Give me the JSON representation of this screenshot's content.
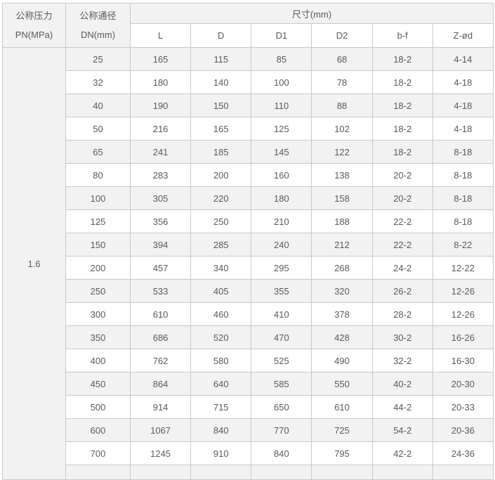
{
  "colors": {
    "header_bg": "#f2f2f2",
    "stripe_bg": "#f2f2f2",
    "row_bg": "#ffffff",
    "border": "#c8c8c8",
    "text": "#58595b"
  },
  "table": {
    "header": {
      "pn_label_line1": "公称压力",
      "pn_label_line2": "PN(MPa)",
      "dn_label_line1": "公称通径",
      "dn_label_line2": "DN(mm)",
      "size_group_label": "尺寸(mm)",
      "sub_columns": [
        "L",
        "D",
        "D1",
        "D2",
        "b-f",
        "Z-ød"
      ]
    },
    "pn_value": "1.6",
    "rows": [
      [
        "25",
        "165",
        "115",
        "85",
        "68",
        "18-2",
        "4-14"
      ],
      [
        "32",
        "180",
        "140",
        "100",
        "78",
        "18-2",
        "4-18"
      ],
      [
        "40",
        "190",
        "150",
        "110",
        "88",
        "18-2",
        "4-18"
      ],
      [
        "50",
        "216",
        "165",
        "125",
        "102",
        "18-2",
        "4-18"
      ],
      [
        "65",
        "241",
        "185",
        "145",
        "122",
        "18-2",
        "8-18"
      ],
      [
        "80",
        "283",
        "200",
        "160",
        "138",
        "20-2",
        "8-18"
      ],
      [
        "100",
        "305",
        "220",
        "180",
        "158",
        "20-2",
        "8-18"
      ],
      [
        "125",
        "356",
        "250",
        "210",
        "188",
        "22-2",
        "8-18"
      ],
      [
        "150",
        "394",
        "285",
        "240",
        "212",
        "22-2",
        "8-22"
      ],
      [
        "200",
        "457",
        "340",
        "295",
        "268",
        "24-2",
        "12-22"
      ],
      [
        "250",
        "533",
        "405",
        "355",
        "320",
        "26-2",
        "12-26"
      ],
      [
        "300",
        "610",
        "460",
        "410",
        "378",
        "28-2",
        "12-26"
      ],
      [
        "350",
        "686",
        "520",
        "470",
        "428",
        "30-2",
        "16-26"
      ],
      [
        "400",
        "762",
        "580",
        "525",
        "490",
        "32-2",
        "16-30"
      ],
      [
        "450",
        "864",
        "640",
        "585",
        "550",
        "40-2",
        "20-30"
      ],
      [
        "500",
        "914",
        "715",
        "650",
        "610",
        "44-2",
        "20-33"
      ],
      [
        "600",
        "1067",
        "840",
        "770",
        "725",
        "54-2",
        "20-36"
      ],
      [
        "700",
        "1245",
        "910",
        "840",
        "795",
        "42-2",
        "24-36"
      ]
    ]
  }
}
